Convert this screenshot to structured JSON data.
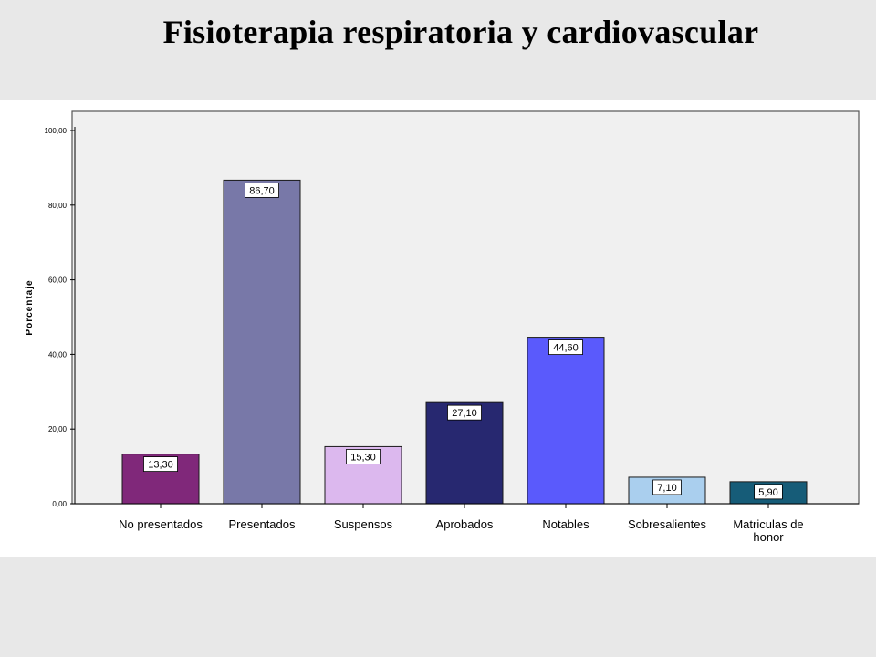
{
  "title": "Fisioterapia respiratoria y cardiovascular",
  "chart_data": {
    "type": "bar",
    "ylabel": "Porcentaje",
    "ylim": [
      0,
      100
    ],
    "y_ticks": [
      "0,00",
      "20,00",
      "40,00",
      "60,00",
      "80,00",
      "100,00"
    ],
    "y_tick_values": [
      0,
      20,
      40,
      60,
      80,
      100
    ],
    "categories": [
      [
        "No presentados"
      ],
      [
        "Presentados"
      ],
      [
        "Suspensos"
      ],
      [
        "Aprobados"
      ],
      [
        "Notables"
      ],
      [
        "Sobresalientes"
      ],
      [
        "Matriculas de",
        "honor"
      ]
    ],
    "values": [
      13.3,
      86.7,
      15.3,
      27.1,
      44.6,
      7.1,
      5.9
    ],
    "value_labels": [
      "13,30",
      "86,70",
      "15,30",
      "27,10",
      "44,60",
      "7,10",
      "5,90"
    ],
    "colors": [
      "#80287a",
      "#7878a8",
      "#dcb8ee",
      "#272870",
      "#5a5afc",
      "#aacfee",
      "#165c78"
    ],
    "plot_background": "#f0f0f0",
    "grid": false,
    "legend": "none"
  }
}
